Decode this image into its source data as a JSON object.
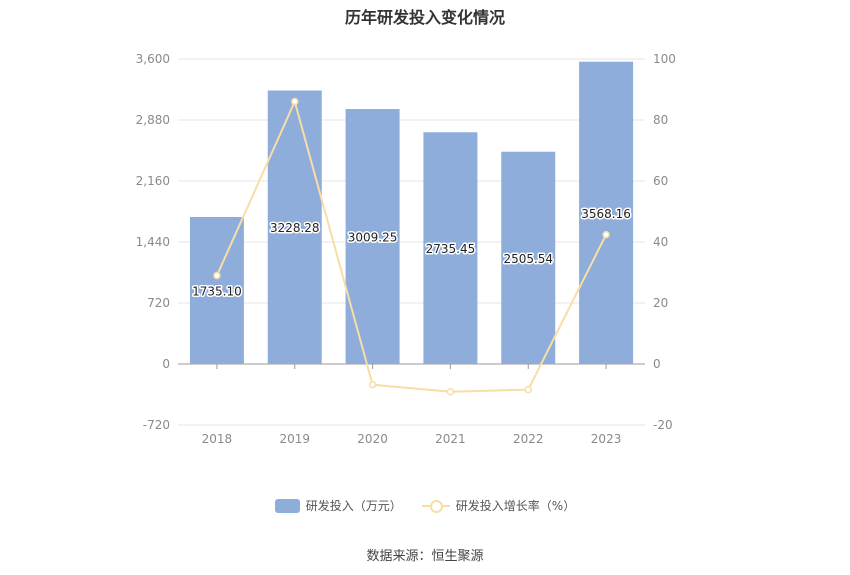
{
  "chart_data": {
    "type": "bar",
    "title": "历年研发投入变化情况",
    "categories": [
      "2018",
      "2019",
      "2020",
      "2021",
      "2022",
      "2023"
    ],
    "y_left_ticks": [
      "3,600",
      "2,880",
      "2,160",
      "1,440",
      "720",
      "0",
      "-720"
    ],
    "y_right_ticks": [
      "100",
      "80",
      "60",
      "40",
      "20",
      "0",
      "-20"
    ],
    "ylim_left": [
      -720,
      3600
    ],
    "ylim_right": [
      -20,
      100
    ],
    "series": [
      {
        "name": "研发投入（万元）",
        "type": "bar",
        "axis": "left",
        "color": "#8eaddb",
        "values": [
          1735.1,
          3228.28,
          3009.25,
          2735.45,
          2505.54,
          3568.16
        ],
        "labels": [
          "1735.10",
          "3228.28",
          "3009.25",
          "2735.45",
          "2505.54",
          "3568.16"
        ]
      },
      {
        "name": "研发投入增长率（%）",
        "type": "line",
        "axis": "right",
        "color": "#f7dda6",
        "values": [
          29.0,
          86.05,
          -6.78,
          -9.1,
          -8.4,
          42.41
        ]
      }
    ],
    "grid": true,
    "legend_position": "bottom"
  },
  "source": "数据来源：恒生聚源"
}
